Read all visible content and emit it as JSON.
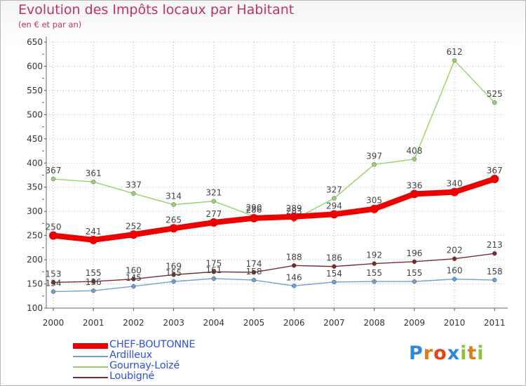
{
  "title": "Evolution des Impôts locaux par Habitant",
  "subtitle": "(en € et par an)",
  "logo": {
    "text": "Proxiti"
  },
  "chart_data": {
    "type": "line",
    "title": "Evolution des Impôts locaux par Habitant",
    "subtitle": "(en € et par an)",
    "xlabel": "",
    "ylabel": "",
    "x": [
      "2000",
      "2001",
      "2002",
      "2003",
      "2004",
      "2005",
      "2006",
      "2007",
      "2008",
      "2009",
      "2010",
      "2011"
    ],
    "ylim": [
      100,
      650
    ],
    "yticks": [
      100,
      150,
      200,
      250,
      300,
      350,
      400,
      450,
      500,
      550,
      600,
      650
    ],
    "grid": {
      "horizontal": true,
      "vertical": true,
      "style": "dotted"
    },
    "legend_position": "bottom-left",
    "series": [
      {
        "name": "CHEF-BOUTONNE",
        "color": "#ee0000",
        "width": "bold",
        "values": [
          250,
          241,
          252,
          265,
          277,
          286,
          289,
          294,
          305,
          336,
          340,
          367
        ]
      },
      {
        "name": "Ardilleux",
        "color": "#6e9fd2",
        "width": "thin",
        "values": [
          134,
          136,
          145,
          155,
          161,
          158,
          146,
          154,
          155,
          155,
          160,
          158
        ]
      },
      {
        "name": "Gournay-Loizé",
        "color": "#97d36a",
        "width": "thin",
        "values": [
          367,
          361,
          337,
          314,
          321,
          290,
          283,
          327,
          397,
          408,
          612,
          525
        ]
      },
      {
        "name": "Loubigné",
        "color": "#7a2b2b",
        "width": "thin",
        "values": [
          153,
          155,
          160,
          169,
          175,
          174,
          188,
          186,
          192,
          196,
          202,
          213
        ]
      }
    ]
  }
}
